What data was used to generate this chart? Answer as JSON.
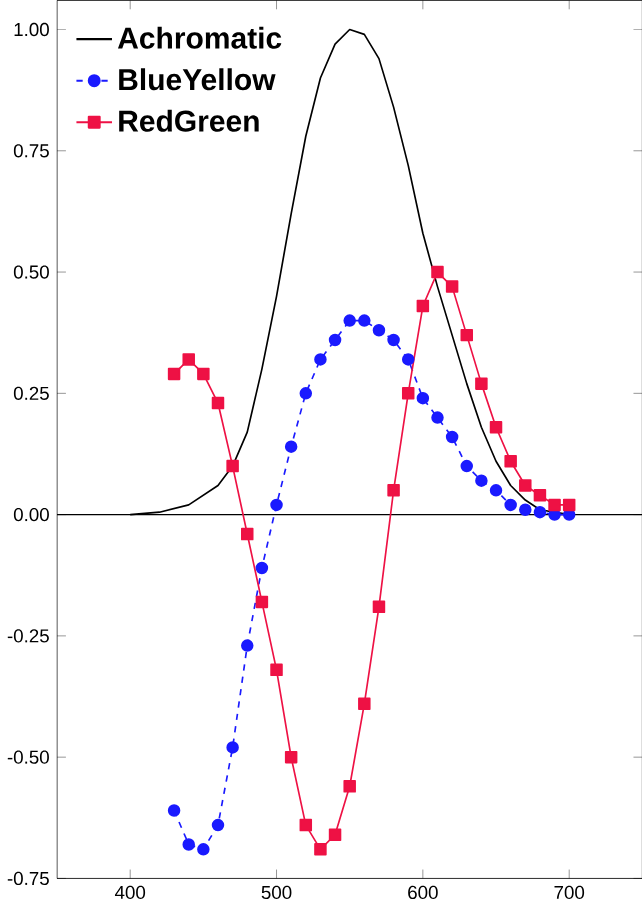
{
  "chart_data": {
    "type": "line",
    "x": [
      430,
      440,
      450,
      460,
      470,
      480,
      490,
      500,
      510,
      520,
      530,
      540,
      550,
      560,
      570,
      580,
      590,
      600,
      610,
      620,
      630,
      640,
      650,
      660,
      670,
      680,
      690,
      700
    ],
    "series": [
      {
        "name": "Achromatic",
        "color": "#000000",
        "marker": "none",
        "line_style": "solid",
        "x": [
          400,
          420,
          440,
          460,
          470,
          480,
          490,
          500,
          510,
          520,
          530,
          540,
          550,
          560,
          570,
          580,
          590,
          600,
          610,
          620,
          630,
          640,
          650,
          660,
          670,
          680,
          690,
          700
        ],
        "values": [
          0.0,
          0.005,
          0.02,
          0.06,
          0.1,
          0.17,
          0.3,
          0.45,
          0.62,
          0.78,
          0.9,
          0.97,
          1.0,
          0.99,
          0.94,
          0.84,
          0.72,
          0.58,
          0.47,
          0.37,
          0.27,
          0.18,
          0.11,
          0.06,
          0.03,
          0.01,
          0.005,
          0.0
        ]
      },
      {
        "name": "BlueYellow",
        "color": "#1a1aff",
        "marker": "circle",
        "line_style": "dashed",
        "values": [
          -0.61,
          -0.68,
          -0.69,
          -0.64,
          -0.48,
          -0.27,
          -0.11,
          0.02,
          0.14,
          0.25,
          0.32,
          0.36,
          0.4,
          0.4,
          0.38,
          0.36,
          0.32,
          0.24,
          0.2,
          0.16,
          0.1,
          0.07,
          0.05,
          0.02,
          0.01,
          0.005,
          0.0,
          0.0
        ]
      },
      {
        "name": "RedGreen",
        "color": "#ee1144",
        "marker": "square",
        "line_style": "solid",
        "values": [
          0.29,
          0.32,
          0.29,
          0.23,
          0.1,
          -0.04,
          -0.18,
          -0.32,
          -0.5,
          -0.64,
          -0.69,
          -0.66,
          -0.56,
          -0.39,
          -0.19,
          0.05,
          0.25,
          0.43,
          0.5,
          0.47,
          0.37,
          0.27,
          0.18,
          0.11,
          0.06,
          0.04,
          0.02,
          0.02
        ]
      }
    ],
    "xlim": [
      350,
      750
    ],
    "ylim": [
      -0.75,
      1.06
    ],
    "xticks": [
      400,
      500,
      600,
      700
    ],
    "yticks": [
      {
        "value": -0.75,
        "label": "-0.75"
      },
      {
        "value": -0.5,
        "label": "-0.50"
      },
      {
        "value": -0.25,
        "label": "-0.25"
      },
      {
        "value": 0,
        "label": "0.00"
      },
      {
        "value": 0.25,
        "label": "0.25"
      },
      {
        "value": 0.5,
        "label": "0.50"
      },
      {
        "value": 0.75,
        "label": "0.75"
      },
      {
        "value": 1,
        "label": "1.00"
      }
    ],
    "ref_lines": [
      {
        "axis": "y",
        "value": 0,
        "color": "#000000"
      }
    ],
    "legend": "top left",
    "grid": false
  }
}
